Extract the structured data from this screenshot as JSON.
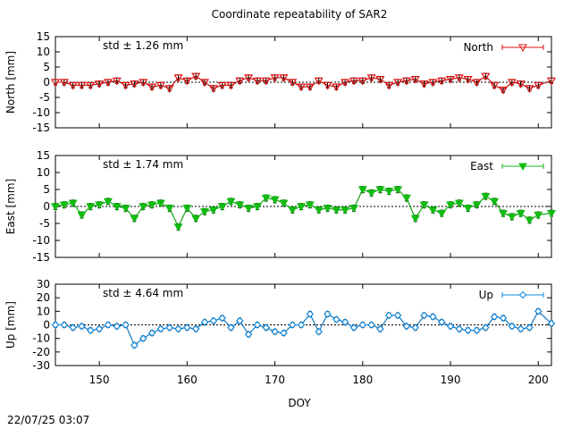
{
  "title": "Coordinate repeatability of SAR2",
  "xlabel": "DOY",
  "timestamp": "22/07/25 03:07",
  "chart_data": {
    "type": "line",
    "xlim": [
      145,
      201.5
    ],
    "xticks": [
      150,
      160,
      170,
      180,
      190,
      200
    ],
    "x": [
      145,
      146,
      147,
      148,
      149,
      150,
      151,
      152,
      153,
      154,
      155,
      156,
      157,
      158,
      159,
      160,
      161,
      162,
      163,
      164,
      165,
      166,
      167,
      168,
      169,
      170,
      171,
      172,
      173,
      174,
      175,
      176,
      177,
      178,
      179,
      180,
      181,
      182,
      183,
      184,
      185,
      186,
      187,
      188,
      189,
      190,
      191,
      192,
      193,
      194,
      195,
      196,
      197,
      198,
      199,
      200,
      201.5
    ],
    "grid": false,
    "legend_position": "top-right",
    "panels": [
      {
        "name": "North",
        "ylabel": "North [mm]",
        "ylim": [
          -15,
          15
        ],
        "yticks": [
          -15,
          -10,
          -5,
          0,
          5,
          10,
          15
        ],
        "std_label": "std ± 1.26 mm",
        "color": "#dd1111",
        "marker": "triangle-down",
        "values": [
          0,
          0,
          -1,
          -1,
          -1,
          -0.5,
          0,
          0.5,
          -1,
          -0.5,
          0,
          -1.5,
          -1,
          -2,
          1.5,
          0.5,
          2,
          0,
          -2,
          -1,
          -1,
          0.5,
          1.5,
          0.5,
          0.5,
          1.5,
          1.5,
          0,
          -1.5,
          -1.5,
          0.5,
          -1,
          -1.5,
          0,
          0.5,
          0.5,
          1.5,
          1,
          -1,
          0,
          0.5,
          1,
          -0.5,
          0,
          0.5,
          1,
          1.5,
          1,
          0,
          2,
          -1,
          -2.5,
          0,
          -0.5,
          -2,
          -1,
          0.5
        ]
      },
      {
        "name": "East",
        "ylabel": "East [mm]",
        "ylim": [
          -15,
          15
        ],
        "yticks": [
          -15,
          -10,
          -5,
          0,
          5,
          10,
          15
        ],
        "std_label": "std ± 1.74 mm",
        "color": "#11bb11",
        "marker": "triangle-down",
        "values": [
          0,
          0.5,
          1,
          -2.5,
          0,
          0.5,
          1.5,
          0,
          -0.5,
          -3.5,
          0,
          0.5,
          1,
          -0.5,
          -6,
          -0.5,
          -3.5,
          -1.5,
          -1,
          0,
          1.5,
          0.5,
          -0.5,
          0,
          2.5,
          2,
          1,
          -1,
          0,
          0.5,
          -1,
          -0.5,
          -1,
          -1,
          -0.5,
          5,
          4,
          5,
          4.5,
          5,
          2.5,
          -3.5,
          0.5,
          -1,
          -2,
          0.5,
          1,
          -0.5,
          0.5,
          3,
          1.5,
          -2,
          -3,
          -2,
          -4,
          -2.5,
          -2
        ]
      },
      {
        "name": "Up",
        "ylabel": "Up [mm]",
        "ylim": [
          -30,
          30
        ],
        "yticks": [
          -30,
          -20,
          -10,
          0,
          10,
          20,
          30
        ],
        "std_label": "std ± 4.64 mm",
        "color": "#1188dd",
        "marker": "diamond-open",
        "values": [
          0,
          0,
          -2,
          -1,
          -4,
          -3,
          0,
          -1,
          0,
          -15,
          -10,
          -6,
          -3,
          -2,
          -3,
          -2,
          -3,
          2,
          3,
          5,
          -2,
          3,
          -7,
          0,
          -2,
          -5,
          -6,
          0,
          0,
          8,
          -5,
          8,
          4,
          2,
          -2,
          0,
          0,
          -3,
          7,
          7,
          -1,
          -2,
          7,
          6,
          2,
          -1,
          -3,
          -4,
          -4,
          -2,
          6,
          5,
          -1,
          -3,
          -2,
          10,
          1
        ]
      }
    ]
  }
}
